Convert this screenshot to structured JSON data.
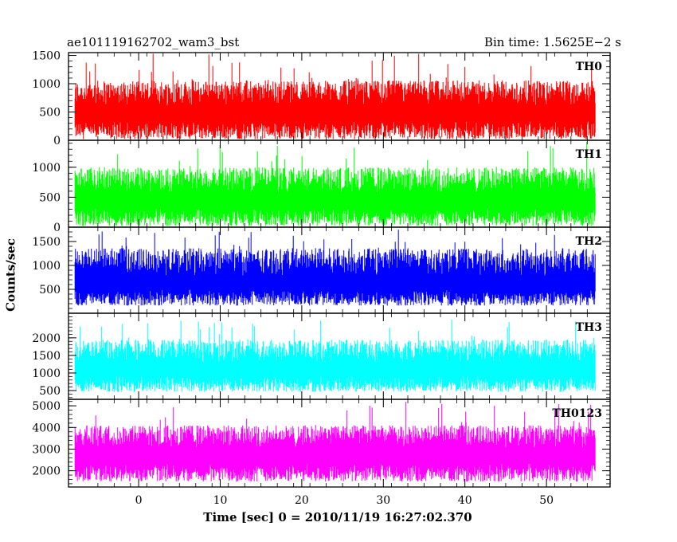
{
  "header": {
    "title": "ae101119162702_wam3_bst",
    "bin_time": "Bin time: 1.5625E−2 s"
  },
  "chart_data": {
    "type": "line",
    "xlabel": "Time [sec] 0 = 2010/11/19 16:27:02.370",
    "ylabel": "Counts/sec",
    "xlim": [
      -8.6,
      57.8
    ],
    "x_range": [
      -7.8,
      56.0
    ],
    "x_ticks": [
      0,
      10,
      20,
      30,
      40,
      50
    ],
    "panels": [
      {
        "name": "TH0",
        "color": "#ff0000",
        "ylim": [
          0,
          1550
        ],
        "yticks": [
          0,
          500,
          1000,
          1500
        ],
        "baseline": 20,
        "center": 600,
        "peak": 1060,
        "max": 1550
      },
      {
        "name": "TH1",
        "color": "#00ff00",
        "ylim": [
          0,
          1450
        ],
        "yticks": [
          0,
          500,
          1000
        ],
        "baseline": 20,
        "center": 560,
        "peak": 1000,
        "max": 1430
      },
      {
        "name": "TH2",
        "color": "#0000ff",
        "ylim": [
          0,
          1800
        ],
        "yticks": [
          500,
          1000,
          1500
        ],
        "baseline": 160,
        "center": 780,
        "peak": 1360,
        "max": 1750
      },
      {
        "name": "TH3",
        "color": "#00ffff",
        "ylim": [
          250,
          2700
        ],
        "yticks": [
          500,
          1000,
          1500,
          2000
        ],
        "baseline": 460,
        "center": 1300,
        "peak": 1950,
        "max": 2550
      },
      {
        "name": "TH0123",
        "color": "#ff00ff",
        "ylim": [
          1250,
          5300
        ],
        "yticks": [
          2000,
          3000,
          4000,
          5000
        ],
        "baseline": 1500,
        "center": 3050,
        "peak": 4100,
        "max": 5200
      }
    ]
  }
}
